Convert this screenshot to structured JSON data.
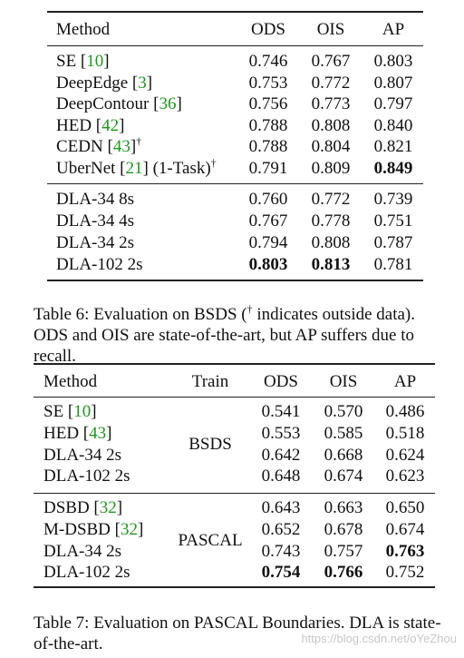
{
  "tables": [
    {
      "header": [
        "Method",
        "ODS",
        "OIS",
        "AP"
      ],
      "groups": [
        {
          "rows": [
            {
              "method": [
                {
                  "text": "SE ["
                },
                {
                  "text": "10",
                  "ref": true
                },
                {
                  "text": "]"
                }
              ],
              "scores": [
                "0.746",
                "0.767",
                "0.803"
              ]
            },
            {
              "method": [
                {
                  "text": "DeepEdge ["
                },
                {
                  "text": "3",
                  "ref": true
                },
                {
                  "text": "]"
                }
              ],
              "scores": [
                "0.753",
                "0.772",
                "0.807"
              ]
            },
            {
              "method": [
                {
                  "text": "DeepContour ["
                },
                {
                  "text": "36",
                  "ref": true
                },
                {
                  "text": "]"
                }
              ],
              "scores": [
                "0.756",
                "0.773",
                "0.797"
              ]
            },
            {
              "method": [
                {
                  "text": "HED ["
                },
                {
                  "text": "42",
                  "ref": true
                },
                {
                  "text": "]"
                }
              ],
              "scores": [
                "0.788",
                "0.808",
                "0.840"
              ]
            },
            {
              "method": [
                {
                  "text": "CEDN ["
                },
                {
                  "text": "43",
                  "ref": true
                },
                {
                  "text": "]"
                },
                {
                  "text": "†",
                  "sup": true
                }
              ],
              "scores": [
                "0.788",
                "0.804",
                "0.821"
              ]
            },
            {
              "method": [
                {
                  "text": "UberNet ["
                },
                {
                  "text": "21",
                  "ref": true
                },
                {
                  "text": "] (1-Task)"
                },
                {
                  "text": "†",
                  "sup": true
                }
              ],
              "scores": [
                "0.791",
                "0.809",
                "0.849"
              ],
              "bold": [
                2
              ]
            }
          ]
        },
        {
          "rows": [
            {
              "method": [
                {
                  "text": "DLA-34 8s"
                }
              ],
              "scores": [
                "0.760",
                "0.772",
                "0.739"
              ]
            },
            {
              "method": [
                {
                  "text": "DLA-34 4s"
                }
              ],
              "scores": [
                "0.767",
                "0.778",
                "0.751"
              ]
            },
            {
              "method": [
                {
                  "text": "DLA-34 2s"
                }
              ],
              "scores": [
                "0.794",
                "0.808",
                "0.787"
              ]
            },
            {
              "method": [
                {
                  "text": "DLA-102 2s"
                }
              ],
              "scores": [
                "0.803",
                "0.813",
                "0.781"
              ],
              "bold": [
                0,
                1
              ]
            }
          ]
        }
      ],
      "caption": [
        {
          "text": "Table 6: Evaluation on BSDS ("
        },
        {
          "text": "†",
          "sup": true
        },
        {
          "text": " indicates outside data). ODS and OIS are state-of-the-art, but AP suffers due to recall."
        }
      ]
    },
    {
      "header": [
        "Method",
        "Train",
        "ODS",
        "OIS",
        "AP"
      ],
      "groups": [
        {
          "train": "BSDS",
          "rows": [
            {
              "method": [
                {
                  "text": "SE ["
                },
                {
                  "text": "10",
                  "ref": true
                },
                {
                  "text": "]"
                }
              ],
              "scores": [
                "0.541",
                "0.570",
                "0.486"
              ]
            },
            {
              "method": [
                {
                  "text": "HED ["
                },
                {
                  "text": "43",
                  "ref": true
                },
                {
                  "text": "]"
                }
              ],
              "scores": [
                "0.553",
                "0.585",
                "0.518"
              ]
            },
            {
              "method": [
                {
                  "text": "DLA-34 2s"
                }
              ],
              "scores": [
                "0.642",
                "0.668",
                "0.624"
              ]
            },
            {
              "method": [
                {
                  "text": "DLA-102 2s"
                }
              ],
              "scores": [
                "0.648",
                "0.674",
                "0.623"
              ]
            }
          ]
        },
        {
          "train": "PASCAL",
          "rows": [
            {
              "method": [
                {
                  "text": "DSBD ["
                },
                {
                  "text": "32",
                  "ref": true
                },
                {
                  "text": "]"
                }
              ],
              "scores": [
                "0.643",
                "0.663",
                "0.650"
              ]
            },
            {
              "method": [
                {
                  "text": "M-DSBD ["
                },
                {
                  "text": "32",
                  "ref": true
                },
                {
                  "text": "]"
                }
              ],
              "scores": [
                "0.652",
                "0.678",
                "0.674"
              ]
            },
            {
              "method": [
                {
                  "text": "DLA-34 2s"
                }
              ],
              "scores": [
                "0.743",
                "0.757",
                "0.763"
              ],
              "bold": [
                2
              ]
            },
            {
              "method": [
                {
                  "text": "DLA-102 2s"
                }
              ],
              "scores": [
                "0.754",
                "0.766",
                "0.752"
              ],
              "bold": [
                0,
                1
              ]
            }
          ]
        }
      ],
      "caption": [
        {
          "text": "Table 7: Evaluation on PASCAL Boundaries. DLA is state-of-the-art."
        }
      ]
    }
  ],
  "watermark": "https://blog.csdn.net/oYeZhou"
}
